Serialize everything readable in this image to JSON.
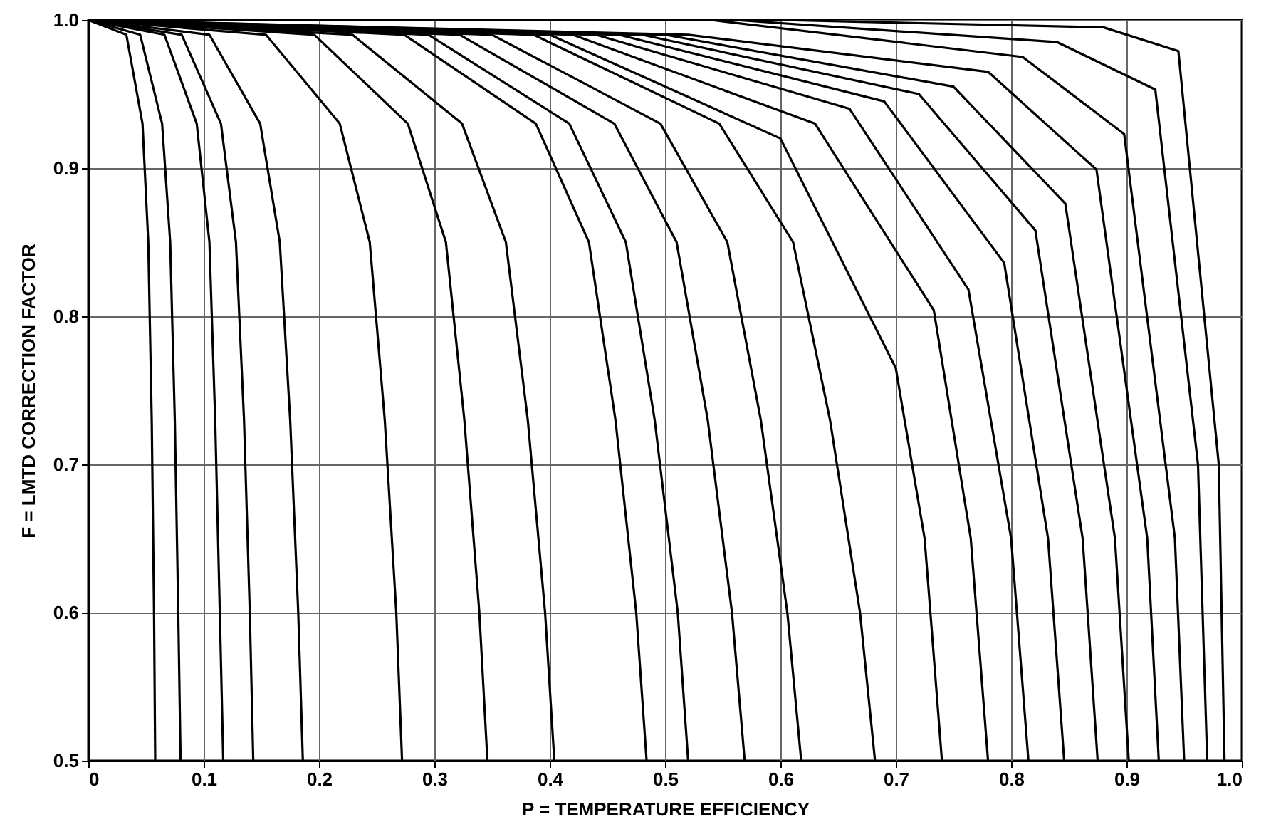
{
  "chart_data": {
    "type": "line",
    "xlabel": "P = TEMPERATURE EFFICIENCY",
    "ylabel": "F = LMTD CORRECTION FACTOR",
    "xlim": [
      0,
      1
    ],
    "ylim": [
      0.5,
      1
    ],
    "xticks": [
      0,
      0.1,
      0.2,
      0.3,
      0.4,
      0.5,
      0.6,
      0.7,
      0.8,
      0.9,
      {
        "value": 1,
        "label": "1.0"
      }
    ],
    "yticks": [
      0.5,
      0.6,
      0.7,
      0.8,
      0.9,
      {
        "value": 1,
        "label": "1.0"
      }
    ],
    "grid": true,
    "marker": "none",
    "line_style": "solid",
    "series": [
      {
        "color": "#000000",
        "x": [
          0,
          0.033,
          0.047,
          0.052,
          0.055,
          0.057,
          0.058
        ],
        "values": [
          1,
          0.99,
          0.93,
          0.85,
          0.73,
          0.6,
          0.5
        ]
      },
      {
        "color": "#000000",
        "x": [
          0,
          0.045,
          0.064,
          0.071,
          0.075,
          0.078,
          0.08
        ],
        "values": [
          1,
          0.99,
          0.93,
          0.85,
          0.73,
          0.6,
          0.5
        ]
      },
      {
        "color": "#000000",
        "x": [
          0,
          0.066,
          0.094,
          0.105,
          0.11,
          0.114,
          0.117
        ],
        "values": [
          1,
          0.99,
          0.93,
          0.85,
          0.73,
          0.6,
          0.5
        ]
      },
      {
        "color": "#000000",
        "x": [
          0,
          0.081,
          0.115,
          0.128,
          0.135,
          0.14,
          0.143
        ],
        "values": [
          1,
          0.99,
          0.93,
          0.85,
          0.73,
          0.6,
          0.5
        ]
      },
      {
        "color": "#000000",
        "x": [
          0,
          0.105,
          0.149,
          0.166,
          0.175,
          0.182,
          0.186
        ],
        "values": [
          1,
          0.99,
          0.93,
          0.85,
          0.73,
          0.6,
          0.5
        ]
      },
      {
        "color": "#000000",
        "x": [
          0,
          0.154,
          0.218,
          0.244,
          0.257,
          0.267,
          0.272
        ],
        "values": [
          1,
          0.99,
          0.93,
          0.85,
          0.73,
          0.6,
          0.5
        ]
      },
      {
        "color": "#000000",
        "x": [
          0,
          0.196,
          0.277,
          0.31,
          0.326,
          0.339,
          0.346
        ],
        "values": [
          1,
          0.99,
          0.93,
          0.85,
          0.73,
          0.6,
          0.5
        ]
      },
      {
        "color": "#000000",
        "x": [
          0,
          0.229,
          0.324,
          0.362,
          0.381,
          0.396,
          0.404
        ],
        "values": [
          1,
          0.99,
          0.93,
          0.85,
          0.73,
          0.6,
          0.5
        ]
      },
      {
        "color": "#000000",
        "x": [
          0,
          0.274,
          0.388,
          0.434,
          0.457,
          0.475,
          0.484
        ],
        "values": [
          1,
          0.99,
          0.93,
          0.85,
          0.73,
          0.6,
          0.5
        ]
      },
      {
        "color": "#000000",
        "x": [
          0,
          0.295,
          0.417,
          0.466,
          0.491,
          0.511,
          0.52
        ],
        "values": [
          1,
          0.99,
          0.93,
          0.85,
          0.73,
          0.6,
          0.5
        ]
      },
      {
        "color": "#000000",
        "x": [
          0,
          0.322,
          0.456,
          0.51,
          0.537,
          0.558,
          0.569
        ],
        "values": [
          1,
          0.99,
          0.93,
          0.85,
          0.73,
          0.6,
          0.5
        ]
      },
      {
        "color": "#000000",
        "x": [
          0,
          0.35,
          0.496,
          0.554,
          0.583,
          0.606,
          0.618
        ],
        "values": [
          1,
          0.99,
          0.93,
          0.85,
          0.73,
          0.6,
          0.5
        ]
      },
      {
        "color": "#000000",
        "x": [
          0,
          0.386,
          0.547,
          0.611,
          0.643,
          0.669,
          0.682
        ],
        "values": [
          1,
          0.99,
          0.93,
          0.85,
          0.73,
          0.6,
          0.5
        ]
      },
      {
        "color": "#000000",
        "x": [
          0,
          0.4,
          0.6,
          0.7,
          0.725,
          0.74
        ],
        "values": [
          1,
          0.99,
          0.92,
          0.765,
          0.65,
          0.5
        ]
      },
      {
        "color": "#000000",
        "x": [
          0,
          0.42,
          0.63,
          0.733,
          0.765,
          0.78
        ],
        "values": [
          1,
          0.99,
          0.93,
          0.804,
          0.65,
          0.5
        ]
      },
      {
        "color": "#000000",
        "x": [
          0,
          0.44,
          0.66,
          0.763,
          0.8,
          0.815
        ],
        "values": [
          1,
          0.99,
          0.94,
          0.818,
          0.65,
          0.5
        ]
      },
      {
        "color": "#000000",
        "x": [
          0,
          0.46,
          0.69,
          0.794,
          0.832,
          0.846
        ],
        "values": [
          1,
          0.99,
          0.945,
          0.836,
          0.65,
          0.5
        ]
      },
      {
        "color": "#000000",
        "x": [
          0,
          0.48,
          0.72,
          0.821,
          0.862,
          0.875
        ],
        "values": [
          1,
          0.99,
          0.95,
          0.858,
          0.65,
          0.5
        ]
      },
      {
        "color": "#000000",
        "x": [
          0,
          0.5,
          0.75,
          0.847,
          0.89,
          0.902
        ],
        "values": [
          1,
          0.99,
          0.955,
          0.876,
          0.65,
          0.5
        ]
      },
      {
        "color": "#000000",
        "x": [
          0,
          0.52,
          0.78,
          0.874,
          0.918,
          0.928
        ],
        "values": [
          1,
          0.99,
          0.965,
          0.899,
          0.65,
          0.5
        ]
      },
      {
        "color": "#000000",
        "x": [
          0,
          0.54,
          0.81,
          0.898,
          0.942,
          0.95
        ],
        "values": [
          1,
          1,
          0.975,
          0.923,
          0.65,
          0.5
        ]
      },
      {
        "color": "#000000",
        "x": [
          0,
          0.56,
          0.84,
          0.925,
          0.962,
          0.97
        ],
        "values": [
          1,
          1,
          0.985,
          0.953,
          0.7,
          0.5
        ]
      },
      {
        "color": "#000000",
        "x": [
          0,
          0.6,
          0.88,
          0.945,
          0.98,
          0.985
        ],
        "values": [
          1,
          1,
          0.995,
          0.979,
          0.7,
          0.5
        ]
      }
    ]
  }
}
